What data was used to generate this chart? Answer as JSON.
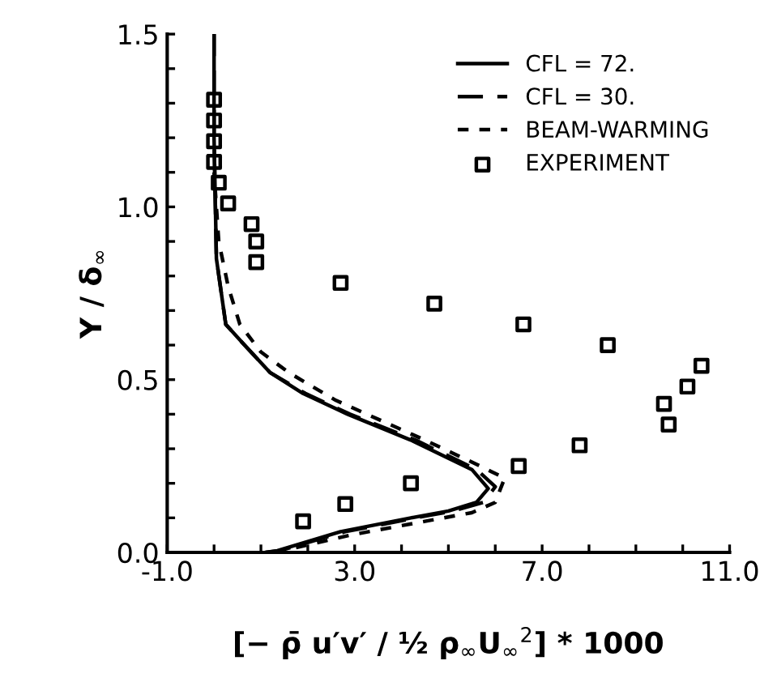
{
  "chart_data": {
    "type": "line",
    "xlabel": "[− ρ̄ u′v′ / ½ ρ$_{∞}$U$_{∞}$$^{2}$] * 1000",
    "ylabel": "Y / δ$_{∞}$",
    "xlim": [
      -1.0,
      11.0
    ],
    "ylim": [
      0.0,
      1.5
    ],
    "xticks": [
      {
        "value": -1.0,
        "label": "-1.0"
      },
      {
        "value": 0,
        "label": null
      },
      {
        "value": 1,
        "label": null
      },
      {
        "value": 2,
        "label": null
      },
      {
        "value": 3.0,
        "label": "3.0"
      },
      {
        "value": 4,
        "label": null
      },
      {
        "value": 5,
        "label": null
      },
      {
        "value": 6,
        "label": null
      },
      {
        "value": 7.0,
        "label": "7.0"
      },
      {
        "value": 8,
        "label": null
      },
      {
        "value": 9,
        "label": null
      },
      {
        "value": 10,
        "label": null
      },
      {
        "value": 11.0,
        "label": "11.0"
      }
    ],
    "yticks": [
      {
        "value": 0.0,
        "label": "0.0"
      },
      {
        "value": 0.1,
        "label": null
      },
      {
        "value": 0.2,
        "label": null
      },
      {
        "value": 0.3,
        "label": null
      },
      {
        "value": 0.4,
        "label": null
      },
      {
        "value": 0.5,
        "label": "0.5"
      },
      {
        "value": 0.6,
        "label": null
      },
      {
        "value": 0.7,
        "label": null
      },
      {
        "value": 0.8,
        "label": null
      },
      {
        "value": 0.9,
        "label": null
      },
      {
        "value": 1.0,
        "label": "1.0"
      },
      {
        "value": 1.1,
        "label": null
      },
      {
        "value": 1.2,
        "label": null
      },
      {
        "value": 1.3,
        "label": null
      },
      {
        "value": 1.4,
        "label": null
      },
      {
        "value": 1.5,
        "label": "1.5"
      }
    ],
    "legend": "top right",
    "grid": false,
    "series": [
      {
        "name": "CFL = 72.",
        "color": "#000000",
        "line_style": "solid",
        "marker": "none",
        "x": [
          1.1,
          1.35,
          2.7,
          4.2,
          5.0,
          5.6,
          5.85,
          5.5,
          4.2,
          2.85,
          1.9,
          1.2,
          0.65,
          0.25,
          0.05,
          0.0,
          0.0
        ],
        "values": [
          0.0,
          0.005,
          0.06,
          0.1,
          0.12,
          0.145,
          0.185,
          0.24,
          0.325,
          0.4,
          0.46,
          0.52,
          0.6,
          0.66,
          0.85,
          1.2,
          1.5
        ]
      },
      {
        "name": "CFL = 30.",
        "color": "#000000",
        "line_style": "dashed",
        "marker": "none",
        "x": [
          1.1,
          1.4,
          2.8,
          4.3,
          5.1,
          5.75,
          6.0,
          5.6,
          4.3,
          2.9,
          1.95,
          1.2,
          0.65,
          0.25,
          0.05,
          0.0,
          0.0
        ],
        "values": [
          0.0,
          0.005,
          0.06,
          0.1,
          0.12,
          0.145,
          0.19,
          0.24,
          0.325,
          0.4,
          0.46,
          0.52,
          0.6,
          0.66,
          0.85,
          1.2,
          1.5
        ]
      },
      {
        "name": "BEAM-WARMING",
        "color": "#000000",
        "line_style": "dotted",
        "marker": "none",
        "x": [
          1.3,
          2.9,
          4.5,
          5.5,
          6.0,
          6.2,
          5.6,
          4.5,
          2.6,
          1.6,
          1.0,
          0.55,
          0.3,
          0.1,
          0.0
        ],
        "values": [
          0.0,
          0.05,
          0.09,
          0.115,
          0.145,
          0.215,
          0.255,
          0.325,
          0.44,
          0.52,
          0.58,
          0.66,
          0.77,
          0.9,
          1.1
        ]
      },
      {
        "name": "EXPERIMENT",
        "type": "scatter",
        "color": "#000000",
        "marker": "square",
        "x": [
          0.0,
          0.0,
          0.0,
          0.0,
          0.1,
          0.3,
          0.8,
          0.9,
          0.9,
          2.7,
          4.7,
          6.6,
          8.4,
          10.4,
          10.1,
          9.6,
          9.7,
          7.8,
          6.5,
          4.2,
          2.8,
          1.9
        ],
        "values": [
          1.31,
          1.25,
          1.19,
          1.13,
          1.07,
          1.01,
          0.95,
          0.9,
          0.84,
          0.78,
          0.72,
          0.66,
          0.6,
          0.54,
          0.48,
          0.43,
          0.37,
          0.31,
          0.25,
          0.2,
          0.14,
          0.09
        ]
      }
    ]
  }
}
